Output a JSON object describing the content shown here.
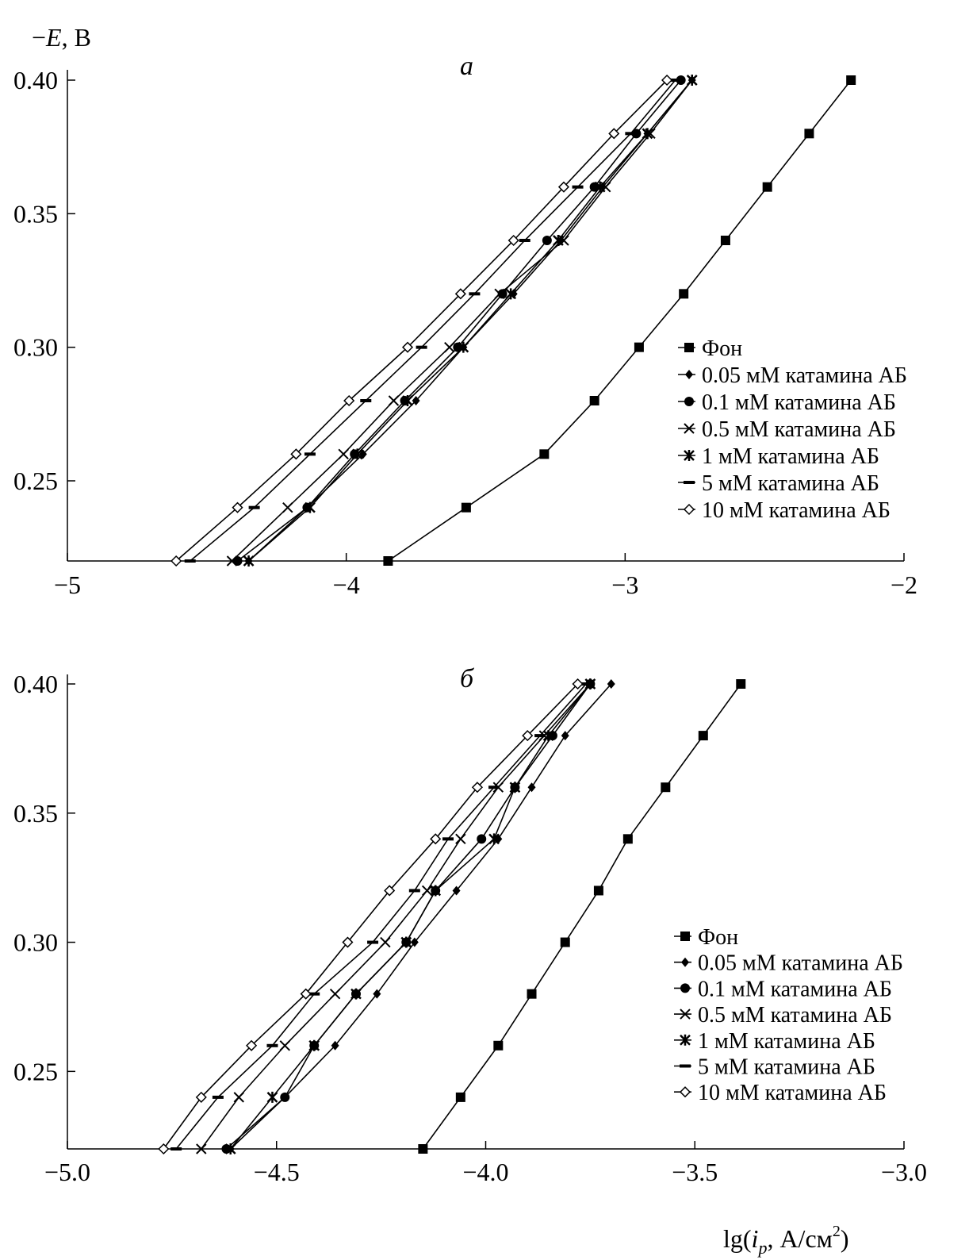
{
  "chart_data": [
    {
      "type": "line",
      "title": "а",
      "ylabel_prefix": "−",
      "ylabel_var": "E",
      "ylabel_unit": ", В",
      "xlabel": "",
      "xlim": [
        -5,
        -2
      ],
      "ylim": [
        0.22,
        0.4
      ],
      "xticks": [
        -5,
        -4,
        -3,
        -2
      ],
      "xtick_labels": [
        "−5",
        "−4",
        "−3",
        "−2"
      ],
      "yticks": [
        0.25,
        0.3,
        0.35,
        0.4
      ],
      "ytick_labels": [
        "0.25",
        "0.30",
        "0.35",
        "0.40"
      ],
      "legend_position": "right",
      "y": [
        0.4,
        0.38,
        0.36,
        0.34,
        0.32,
        0.3,
        0.28,
        0.26,
        0.24,
        0.22
      ],
      "series": [
        {
          "name": "Фон",
          "marker": "square",
          "x": [
            -2.19,
            -2.34,
            -2.49,
            -2.64,
            -2.79,
            -2.95,
            -3.11,
            -3.29,
            -3.57,
            -3.85
          ]
        },
        {
          "name": "0.05 мМ катамина АБ",
          "marker": "diamond-filled",
          "x": [
            -2.76,
            -2.92,
            -3.08,
            -3.23,
            -3.4,
            -3.58,
            -3.75,
            -3.94,
            -4.14,
            -4.35
          ]
        },
        {
          "name": "0.1 мМ катамина АБ",
          "marker": "circle",
          "x": [
            -2.8,
            -2.96,
            -3.11,
            -3.28,
            -3.44,
            -3.6,
            -3.79,
            -3.97,
            -4.14,
            -4.39
          ]
        },
        {
          "name": "0.5 мМ катамина АБ",
          "marker": "x",
          "x": [
            -2.76,
            -2.91,
            -3.07,
            -3.22,
            -3.45,
            -3.63,
            -3.83,
            -4.01,
            -4.21,
            -4.41
          ]
        },
        {
          "name": "1 мМ катамина АБ",
          "marker": "star",
          "x": [
            -2.76,
            -2.92,
            -3.09,
            -3.24,
            -3.41,
            -3.58,
            -3.78,
            -3.96,
            -4.13,
            -4.35
          ]
        },
        {
          "name": "5 мМ катамина АБ",
          "marker": "dash",
          "x": [
            -2.82,
            -2.98,
            -3.17,
            -3.36,
            -3.54,
            -3.73,
            -3.93,
            -4.13,
            -4.33,
            -4.56
          ]
        },
        {
          "name": "10 мМ катамина АБ",
          "marker": "diamond-open",
          "x": [
            -2.85,
            -3.04,
            -3.22,
            -3.4,
            -3.59,
            -3.78,
            -3.99,
            -4.18,
            -4.39,
            -4.61
          ]
        }
      ]
    },
    {
      "type": "line",
      "title": "б",
      "xlabel_prefix": "lg(",
      "xlabel_var": "i",
      "xlabel_sub": "p",
      "xlabel_unit": ", А/см",
      "xlabel_sup": "2",
      "xlabel_close": ")",
      "xlim": [
        -5.0,
        -3.0
      ],
      "ylim": [
        0.22,
        0.4
      ],
      "xticks": [
        -5.0,
        -4.5,
        -4.0,
        -3.5,
        -3.0
      ],
      "xtick_labels": [
        "−5.0",
        "−4.5",
        "−4.0",
        "−3.5",
        "−3.0"
      ],
      "yticks": [
        0.25,
        0.3,
        0.35,
        0.4
      ],
      "ytick_labels": [
        "0.25",
        "0.30",
        "0.35",
        "0.40"
      ],
      "legend_position": "right",
      "y": [
        0.4,
        0.38,
        0.36,
        0.34,
        0.32,
        0.3,
        0.28,
        0.26,
        0.24,
        0.22
      ],
      "series": [
        {
          "name": "Фон",
          "marker": "square",
          "x": [
            -3.39,
            -3.48,
            -3.57,
            -3.66,
            -3.73,
            -3.81,
            -3.89,
            -3.97,
            -4.06,
            -4.15
          ]
        },
        {
          "name": "0.05 мМ катамина АБ",
          "marker": "diamond-filled",
          "x": [
            -3.7,
            -3.81,
            -3.89,
            -3.97,
            -4.07,
            -4.17,
            -4.26,
            -4.36,
            -4.48,
            -4.61
          ]
        },
        {
          "name": "0.1 мМ катамина АБ",
          "marker": "circle",
          "x": [
            -3.75,
            -3.84,
            -3.93,
            -4.01,
            -4.12,
            -4.19,
            -4.31,
            -4.41,
            -4.48,
            -4.62
          ]
        },
        {
          "name": "0.5 мМ катамина АБ",
          "marker": "x",
          "x": [
            -3.75,
            -3.86,
            -3.97,
            -4.06,
            -4.14,
            -4.24,
            -4.36,
            -4.48,
            -4.59,
            -4.68
          ]
        },
        {
          "name": "1 мМ катамина АБ",
          "marker": "star",
          "x": [
            -3.75,
            -3.85,
            -3.93,
            -3.98,
            -4.12,
            -4.19,
            -4.31,
            -4.41,
            -4.51,
            -4.61
          ]
        },
        {
          "name": "5 мМ катамина АБ",
          "marker": "dash",
          "x": [
            -3.76,
            -3.87,
            -3.98,
            -4.09,
            -4.17,
            -4.27,
            -4.41,
            -4.51,
            -4.64,
            -4.74
          ]
        },
        {
          "name": "10 мМ катамина АБ",
          "marker": "diamond-open",
          "x": [
            -3.78,
            -3.9,
            -4.02,
            -4.12,
            -4.23,
            -4.33,
            -4.43,
            -4.56,
            -4.68,
            -4.77
          ]
        }
      ]
    }
  ]
}
